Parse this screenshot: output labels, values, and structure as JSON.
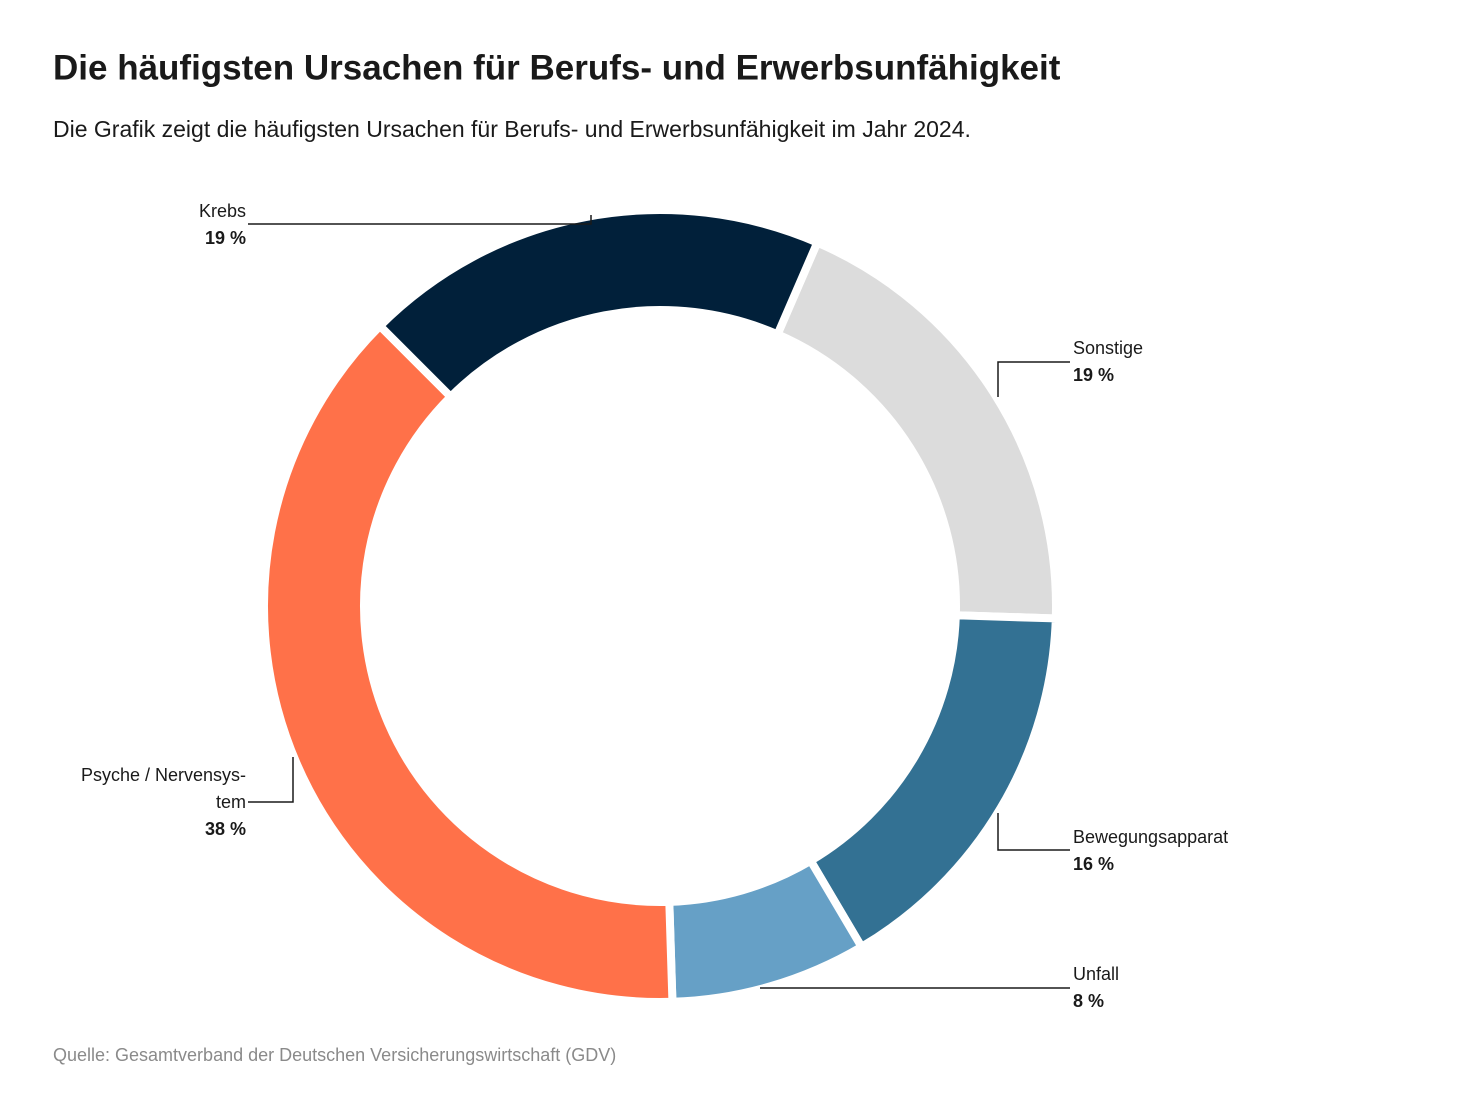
{
  "chart_data": {
    "type": "donut",
    "title": "Die häufigsten Ursachen für Berufs- und Erwerbsunfähigkeit",
    "subtitle": "Die Grafik zeigt die häufigsten Ursachen für  Berufs- und Erwerbsunfähigkeit im Jahr 2024.",
    "categories": [
      "Sonstige",
      "Bewegungsapparat",
      "Unfall",
      "Psyche / Nervensys-tem",
      "Krebs"
    ],
    "values": [
      19,
      16,
      8,
      38,
      19
    ],
    "value_labels": [
      "19 %",
      "16 %",
      "8 %",
      "38 %",
      "19 %"
    ],
    "colors": [
      "#dcdcdc",
      "#337193",
      "#66a0c6",
      "#ff7149",
      "#01203a"
    ],
    "source": "Quelle: Gesamtverband der Deutschen Versicherungswirtschaft (GDV)"
  }
}
